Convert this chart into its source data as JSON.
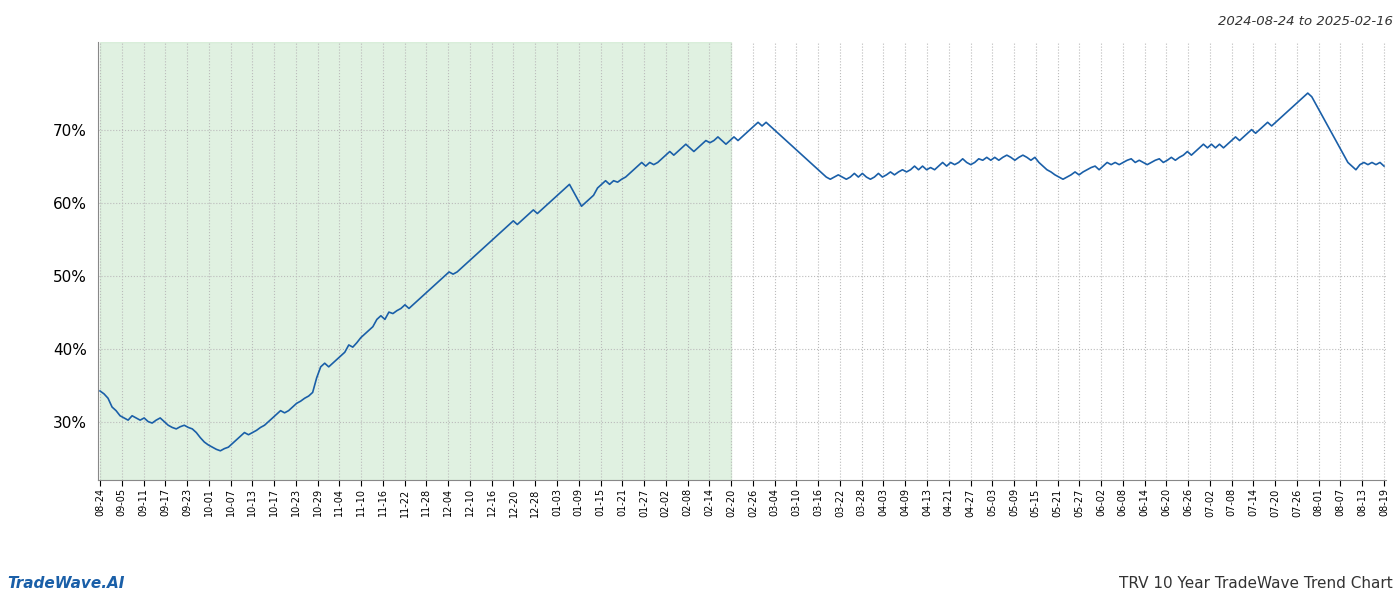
{
  "title_topright": "2024-08-24 to 2025-02-16",
  "title_bottom_left": "TradeWave.AI",
  "title_bottom_right": "TRV 10 Year TradeWave Trend Chart",
  "line_color": "#1a5fa8",
  "line_width": 1.2,
  "shaded_region_color": "#c8e6c9",
  "shaded_alpha": 0.55,
  "background_color": "#ffffff",
  "grid_color": "#bbbbbb",
  "yticks": [
    30,
    40,
    50,
    60,
    70
  ],
  "ylim": [
    22,
    82
  ],
  "x_labels": [
    "08-24",
    "09-05",
    "09-11",
    "09-17",
    "09-23",
    "10-01",
    "10-07",
    "10-13",
    "10-17",
    "10-23",
    "10-29",
    "11-04",
    "11-10",
    "11-16",
    "11-22",
    "11-28",
    "12-04",
    "12-10",
    "12-16",
    "12-20",
    "12-28",
    "01-03",
    "01-09",
    "01-15",
    "01-21",
    "01-27",
    "02-02",
    "02-08",
    "02-14",
    "02-20",
    "02-26",
    "03-04",
    "03-10",
    "03-16",
    "03-22",
    "03-28",
    "04-03",
    "04-09",
    "04-13",
    "04-21",
    "04-27",
    "05-03",
    "05-09",
    "05-15",
    "05-21",
    "05-27",
    "06-02",
    "06-08",
    "06-14",
    "06-20",
    "06-26",
    "07-02",
    "07-08",
    "07-14",
    "07-20",
    "07-26",
    "08-01",
    "08-07",
    "08-13",
    "08-19"
  ],
  "shaded_start_label": "08-24",
  "shaded_end_label": "02-20",
  "values": [
    34.2,
    33.8,
    33.2,
    32.0,
    31.5,
    30.8,
    30.5,
    30.2,
    30.8,
    30.5,
    30.2,
    30.5,
    30.0,
    29.8,
    30.2,
    30.5,
    30.0,
    29.5,
    29.2,
    29.0,
    29.3,
    29.5,
    29.2,
    29.0,
    28.5,
    27.8,
    27.2,
    26.8,
    26.5,
    26.2,
    26.0,
    26.3,
    26.5,
    27.0,
    27.5,
    28.0,
    28.5,
    28.2,
    28.5,
    28.8,
    29.2,
    29.5,
    30.0,
    30.5,
    31.0,
    31.5,
    31.2,
    31.5,
    32.0,
    32.5,
    32.8,
    33.2,
    33.5,
    34.0,
    36.0,
    37.5,
    38.0,
    37.5,
    38.0,
    38.5,
    39.0,
    39.5,
    40.5,
    40.2,
    40.8,
    41.5,
    42.0,
    42.5,
    43.0,
    44.0,
    44.5,
    44.0,
    45.0,
    44.8,
    45.2,
    45.5,
    46.0,
    45.5,
    46.0,
    46.5,
    47.0,
    47.5,
    48.0,
    48.5,
    49.0,
    49.5,
    50.0,
    50.5,
    50.2,
    50.5,
    51.0,
    51.5,
    52.0,
    52.5,
    53.0,
    53.5,
    54.0,
    54.5,
    55.0,
    55.5,
    56.0,
    56.5,
    57.0,
    57.5,
    57.0,
    57.5,
    58.0,
    58.5,
    59.0,
    58.5,
    59.0,
    59.5,
    60.0,
    60.5,
    61.0,
    61.5,
    62.0,
    62.5,
    61.5,
    60.5,
    59.5,
    60.0,
    60.5,
    61.0,
    62.0,
    62.5,
    63.0,
    62.5,
    63.0,
    62.8,
    63.2,
    63.5,
    64.0,
    64.5,
    65.0,
    65.5,
    65.0,
    65.5,
    65.2,
    65.5,
    66.0,
    66.5,
    67.0,
    66.5,
    67.0,
    67.5,
    68.0,
    67.5,
    67.0,
    67.5,
    68.0,
    68.5,
    68.2,
    68.5,
    69.0,
    68.5,
    68.0,
    68.5,
    69.0,
    68.5,
    69.0,
    69.5,
    70.0,
    70.5,
    71.0,
    70.5,
    71.0,
    70.5,
    70.0,
    69.5,
    69.0,
    68.5,
    68.0,
    67.5,
    67.0,
    66.5,
    66.0,
    65.5,
    65.0,
    64.5,
    64.0,
    63.5,
    63.2,
    63.5,
    63.8,
    63.5,
    63.2,
    63.5,
    64.0,
    63.5,
    64.0,
    63.5,
    63.2,
    63.5,
    64.0,
    63.5,
    63.8,
    64.2,
    63.8,
    64.2,
    64.5,
    64.2,
    64.5,
    65.0,
    64.5,
    65.0,
    64.5,
    64.8,
    64.5,
    65.0,
    65.5,
    65.0,
    65.5,
    65.2,
    65.5,
    66.0,
    65.5,
    65.2,
    65.5,
    66.0,
    65.8,
    66.2,
    65.8,
    66.2,
    65.8,
    66.2,
    66.5,
    66.2,
    65.8,
    66.2,
    66.5,
    66.2,
    65.8,
    66.2,
    65.5,
    65.0,
    64.5,
    64.2,
    63.8,
    63.5,
    63.2,
    63.5,
    63.8,
    64.2,
    63.8,
    64.2,
    64.5,
    64.8,
    65.0,
    64.5,
    65.0,
    65.5,
    65.2,
    65.5,
    65.2,
    65.5,
    65.8,
    66.0,
    65.5,
    65.8,
    65.5,
    65.2,
    65.5,
    65.8,
    66.0,
    65.5,
    65.8,
    66.2,
    65.8,
    66.2,
    66.5,
    67.0,
    66.5,
    67.0,
    67.5,
    68.0,
    67.5,
    68.0,
    67.5,
    68.0,
    67.5,
    68.0,
    68.5,
    69.0,
    68.5,
    69.0,
    69.5,
    70.0,
    69.5,
    70.0,
    70.5,
    71.0,
    70.5,
    71.0,
    71.5,
    72.0,
    72.5,
    73.0,
    73.5,
    74.0,
    74.5,
    75.0,
    74.5,
    73.5,
    72.5,
    71.5,
    70.5,
    69.5,
    68.5,
    67.5,
    66.5,
    65.5,
    65.0,
    64.5,
    65.2,
    65.5,
    65.2,
    65.5,
    65.2,
    65.5,
    65.0
  ]
}
